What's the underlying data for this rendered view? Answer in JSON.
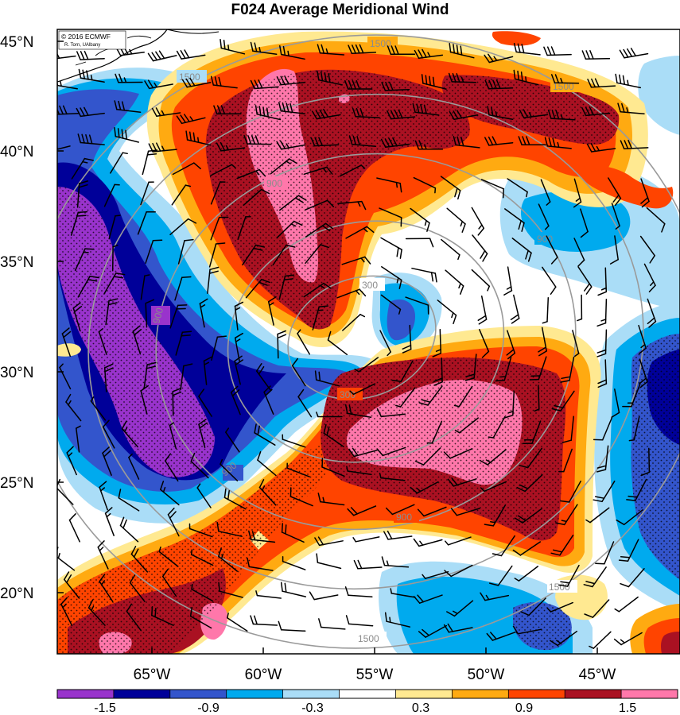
{
  "title": "F024 Average Meridional Wind",
  "credit": {
    "line1": "© 2016 ECMWF",
    "line2": "R. Torn, UAlbany"
  },
  "axes": {
    "lat_ticks": [
      "45°N",
      "40°N",
      "35°N",
      "30°N",
      "25°N",
      "20°N"
    ],
    "lon_ticks": [
      "65°W",
      "60°W",
      "55°W",
      "50°W",
      "45°W"
    ]
  },
  "colorbar": {
    "labels": [
      "-1.5",
      "-0.9",
      "-0.3",
      "0.3",
      "0.9",
      "1.5"
    ],
    "colors": [
      "#9933cc",
      "#000099",
      "#3355cc",
      "#00aaee",
      "#aaddf7",
      "#ffffff",
      "#ffe991",
      "#ffaa11",
      "#ff4400",
      "#aa1122",
      "#ff77aa"
    ]
  },
  "contour_labels": [
    "1500",
    "1500",
    "1500",
    "1500",
    "1500",
    "900",
    "900",
    "900",
    "900",
    "900",
    "300",
    "300"
  ],
  "chart_data": {
    "type": "heatmap",
    "title": "F024 Average Meridional Wind",
    "x_range": [
      -70,
      -42
    ],
    "y_range": [
      17.5,
      46
    ],
    "color_levels": [
      -1.5,
      -1.2,
      -0.9,
      -0.6,
      -0.3,
      0.3,
      0.6,
      0.9,
      1.2,
      1.5
    ]
  }
}
